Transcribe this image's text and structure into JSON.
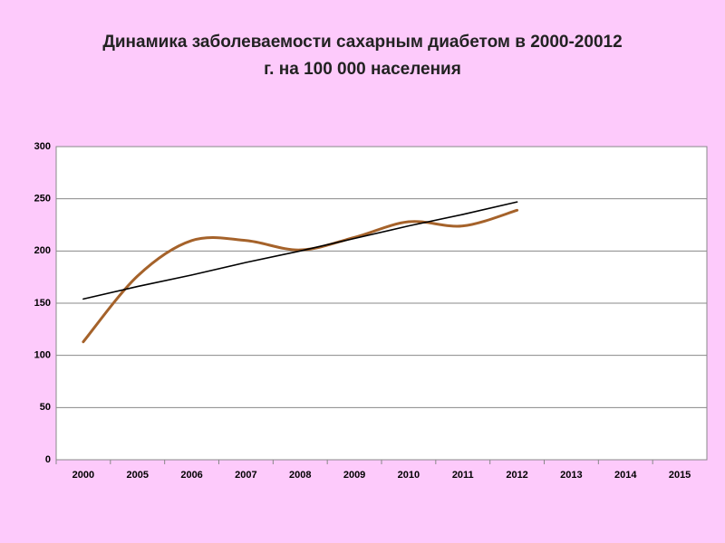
{
  "chart_data": {
    "type": "line",
    "title": [
      "Динамика заболеваемости сахарным диабетом в 2000-20012",
      "г. на 100 000 населения"
    ],
    "categories": [
      "2000",
      "2005",
      "2006",
      "2007",
      "2008",
      "2009",
      "2010",
      "2011",
      "2012",
      "2013",
      "2014",
      "2015"
    ],
    "series": [
      {
        "color": "#a5622a",
        "smooth": true,
        "values": [
          113,
          176,
          210,
          210,
          201,
          213,
          228,
          224,
          239,
          null,
          null,
          null
        ]
      },
      {
        "color": "#000000",
        "smooth": false,
        "values": [
          154,
          166,
          177,
          189,
          200,
          212,
          224,
          235,
          247,
          null,
          null,
          null
        ]
      }
    ],
    "ylim": [
      0,
      300
    ],
    "yticks": [
      0,
      50,
      100,
      150,
      200,
      250,
      300
    ],
    "grid": true
  }
}
